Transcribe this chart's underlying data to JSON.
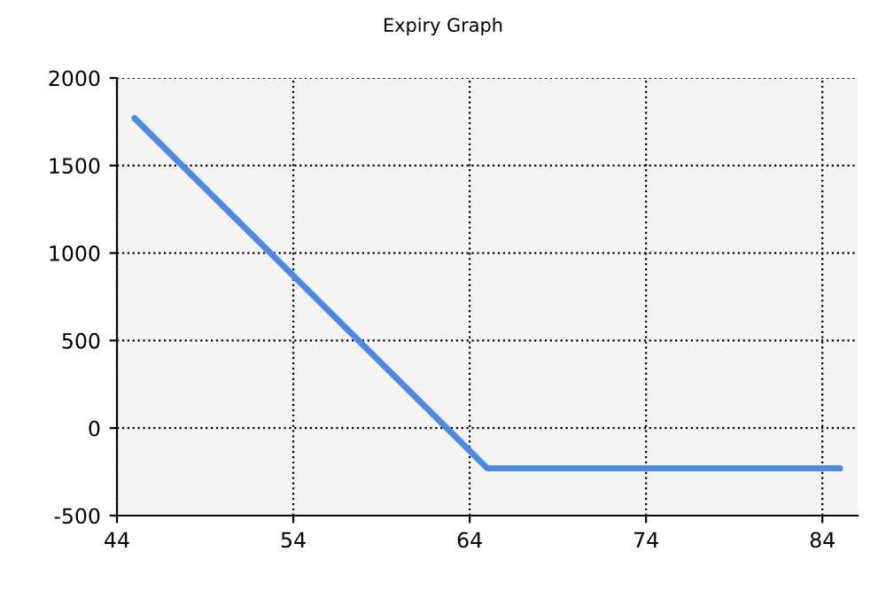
{
  "chart_data": {
    "type": "line",
    "title": "Expiry Graph",
    "x": [
      45,
      65,
      85
    ],
    "series": [
      {
        "color": "#4a89e6",
        "values": [
          1770,
          -230,
          -230
        ]
      }
    ],
    "xlim": [
      44,
      86
    ],
    "xticks": [
      44,
      54,
      64,
      74,
      84
    ],
    "ylim": [
      -500,
      2000
    ],
    "yticks": [
      -500,
      0,
      500,
      1000,
      1500,
      2000
    ],
    "grid": true,
    "marker": "none",
    "line_style": "solid"
  }
}
